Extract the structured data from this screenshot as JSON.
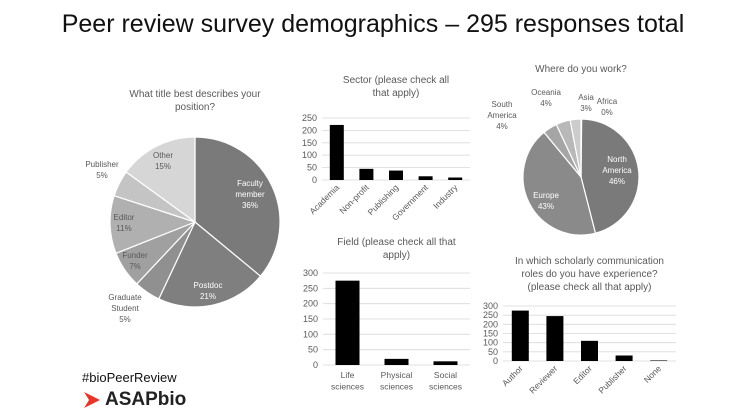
{
  "title": "Peer review survey demographics – 295 responses total",
  "hashtag": "#bioPeerReview",
  "logo_text": "ASAPbio",
  "colors": {
    "bars": "#000000",
    "logo_arrow": "#e8352b"
  },
  "chart_data": [
    {
      "type": "pie",
      "title": "What title best describes your position?",
      "slices": [
        {
          "label": "Faculty member",
          "value": 36,
          "color": "#7a7a7a"
        },
        {
          "label": "Postdoc",
          "value": 21,
          "color": "#7f7f7f"
        },
        {
          "label": "Graduate Student",
          "value": 5,
          "color": "#909090"
        },
        {
          "label": "Funder",
          "value": 7,
          "color": "#a0a0a0"
        },
        {
          "label": "Editor",
          "value": 11,
          "color": "#b0b0b0"
        },
        {
          "label": "Publisher",
          "value": 5,
          "color": "#c4c4c4"
        },
        {
          "label": "Other",
          "value": 15,
          "color": "#d6d6d6"
        }
      ]
    },
    {
      "type": "bar",
      "title": "Sector (please check all that apply)",
      "categories": [
        "Academia",
        "Non-profit",
        "Publishing",
        "Government",
        "Industry"
      ],
      "values": [
        222,
        45,
        38,
        15,
        10
      ],
      "ylim": [
        0,
        250
      ],
      "yticks": [
        0,
        50,
        100,
        150,
        200,
        250
      ],
      "grid": true
    },
    {
      "type": "pie",
      "title": "Where do you work?",
      "slices": [
        {
          "label": "North America",
          "value": 46,
          "color": "#7a7a7a"
        },
        {
          "label": "Europe",
          "value": 43,
          "color": "#8a8a8a"
        },
        {
          "label": "South America",
          "value": 4,
          "color": "#a5a5a5"
        },
        {
          "label": "Oceania",
          "value": 4,
          "color": "#b8b8b8"
        },
        {
          "label": "Asia",
          "value": 3,
          "color": "#cccccc"
        },
        {
          "label": "Africa",
          "value": 0,
          "color": "#dddddd"
        }
      ]
    },
    {
      "type": "bar",
      "title": "Field (please check all that apply)",
      "categories": [
        "Life sciences",
        "Physical sciences",
        "Social sciences"
      ],
      "values": [
        275,
        20,
        12
      ],
      "ylim": [
        0,
        300
      ],
      "yticks": [
        0,
        50,
        100,
        150,
        200,
        250,
        300
      ],
      "grid": true
    },
    {
      "type": "bar",
      "title": "In which scholarly communication roles do you have experience? (please check all that apply)",
      "categories": [
        "Author",
        "Reviewer",
        "Editor",
        "Publisher",
        "None"
      ],
      "values": [
        275,
        245,
        110,
        30,
        3
      ],
      "ylim": [
        0,
        300
      ],
      "yticks": [
        0,
        50,
        100,
        150,
        200,
        250,
        300
      ],
      "grid": true
    }
  ]
}
